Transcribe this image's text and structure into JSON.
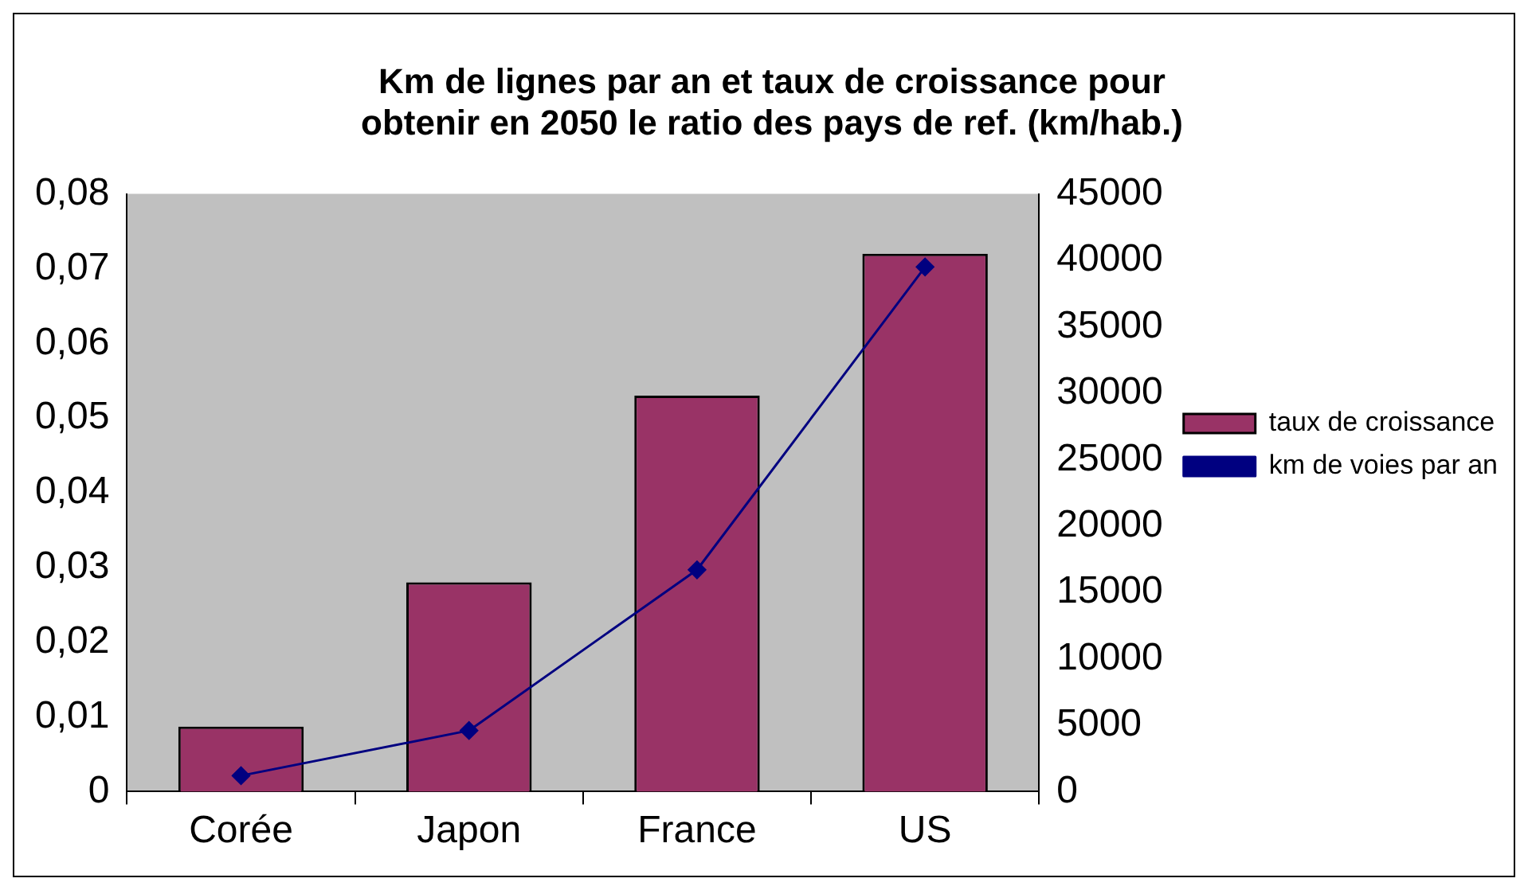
{
  "chart_data": {
    "type": "bar",
    "title": "Km de lignes par an et taux de croissance pour obtenir en 2050 le ratio des pays de ref. (km/hab.)",
    "categories": [
      "Corée",
      "Japon",
      "France",
      "US"
    ],
    "series": [
      {
        "name": "taux de croissance",
        "color": "#993366",
        "values": [
          0.0087,
          0.028,
          0.053,
          0.072
        ]
      },
      {
        "name": "km de voies par an",
        "type": "line",
        "axis": "y2",
        "color": "#000080",
        "values": [
          1200,
          4600,
          16700,
          39500
        ]
      }
    ],
    "ylim": [
      0,
      0.08
    ],
    "yticks": [
      0,
      {
        "value": 0.01,
        "label": "0,01"
      },
      {
        "value": 0.02,
        "label": "0,02"
      },
      {
        "value": 0.03,
        "label": "0,03"
      },
      {
        "value": 0.04,
        "label": "0,04"
      },
      {
        "value": 0.05,
        "label": "0,05"
      },
      {
        "value": 0.06,
        "label": "0,06"
      },
      {
        "value": 0.07,
        "label": "0,07"
      },
      {
        "value": 0.08,
        "label": "0,08"
      }
    ],
    "y2lim": [
      0,
      45000
    ],
    "y2ticks": [
      0,
      5000,
      10000,
      15000,
      20000,
      25000,
      30000,
      35000,
      40000,
      45000
    ],
    "grid": false,
    "legend": "right",
    "marker": "diamond"
  }
}
